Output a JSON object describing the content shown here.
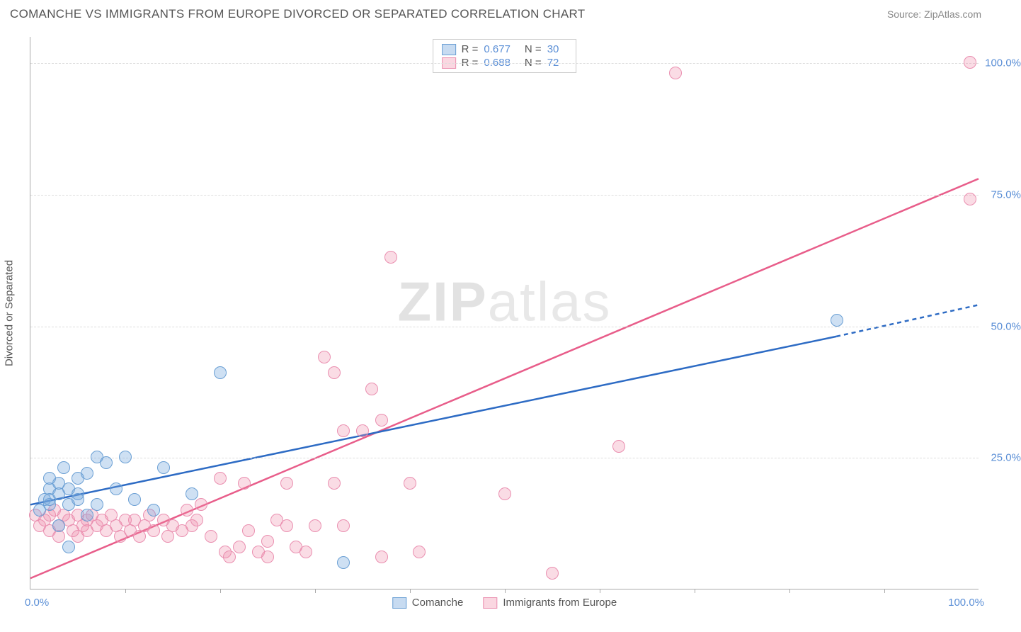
{
  "title": "COMANCHE VS IMMIGRANTS FROM EUROPE DIVORCED OR SEPARATED CORRELATION CHART",
  "source_label": "Source: ",
  "source_name": "ZipAtlas.com",
  "watermark_bold": "ZIP",
  "watermark_light": "atlas",
  "y_axis_title": "Divorced or Separated",
  "x_min_label": "0.0%",
  "x_max_label": "100.0%",
  "xlim": [
    0,
    100
  ],
  "ylim": [
    0,
    105
  ],
  "y_ticks": [
    {
      "v": 25,
      "label": "25.0%"
    },
    {
      "v": 50,
      "label": "50.0%"
    },
    {
      "v": 75,
      "label": "75.0%"
    },
    {
      "v": 100,
      "label": "100.0%"
    }
  ],
  "x_tick_positions": [
    10,
    20,
    30,
    40,
    50,
    60,
    70,
    80,
    90
  ],
  "top_legend": [
    {
      "swatch": "blue",
      "r_label": "R =",
      "r_val": "0.677",
      "n_label": "N =",
      "n_val": "30"
    },
    {
      "swatch": "pink",
      "r_label": "R =",
      "r_val": "0.688",
      "n_label": "N =",
      "n_val": "72"
    }
  ],
  "bottom_legend": [
    {
      "swatch": "blue",
      "label": "Comanche"
    },
    {
      "swatch": "pink",
      "label": "Immigrants from Europe"
    }
  ],
  "series": {
    "comanche": {
      "color_fill": "rgba(115,165,220,0.35)",
      "color_stroke": "#6a9fd4",
      "trend_color": "#2d6bc4",
      "trend_x1": 0,
      "trend_y1": 16,
      "trend_x2": 85,
      "trend_y2": 48,
      "trend_dash_x2": 100,
      "trend_dash_y2": 54,
      "points": [
        [
          1,
          15
        ],
        [
          1.5,
          17
        ],
        [
          2,
          19
        ],
        [
          2,
          16
        ],
        [
          3,
          20
        ],
        [
          3.5,
          23
        ],
        [
          4,
          19
        ],
        [
          4,
          16
        ],
        [
          5,
          18
        ],
        [
          5,
          21
        ],
        [
          6,
          22
        ],
        [
          7,
          25
        ],
        [
          8,
          24
        ],
        [
          9,
          19
        ],
        [
          10,
          25
        ],
        [
          11,
          17
        ],
        [
          17,
          18
        ],
        [
          20,
          41
        ],
        [
          4,
          8
        ],
        [
          3,
          12
        ],
        [
          6,
          14
        ],
        [
          2,
          17
        ],
        [
          13,
          15
        ],
        [
          14,
          23
        ],
        [
          3,
          18
        ],
        [
          2,
          21
        ],
        [
          33,
          5
        ],
        [
          5,
          17
        ],
        [
          7,
          16
        ],
        [
          85,
          51
        ]
      ]
    },
    "immigrants": {
      "color_fill": "rgba(240,140,170,0.30)",
      "color_stroke": "#ea8fb0",
      "trend_color": "#e85d8a",
      "trend_x1": 0,
      "trend_y1": 2,
      "trend_x2": 100,
      "trend_y2": 78,
      "points": [
        [
          0.5,
          14
        ],
        [
          1,
          12
        ],
        [
          1.5,
          13
        ],
        [
          2,
          14
        ],
        [
          2,
          11
        ],
        [
          2.5,
          15
        ],
        [
          3,
          12
        ],
        [
          3,
          10
        ],
        [
          3.5,
          14
        ],
        [
          4,
          13
        ],
        [
          4.5,
          11
        ],
        [
          5,
          14
        ],
        [
          5,
          10
        ],
        [
          5.5,
          12
        ],
        [
          6,
          13
        ],
        [
          6,
          11
        ],
        [
          6.5,
          14
        ],
        [
          7,
          12
        ],
        [
          7.5,
          13
        ],
        [
          8,
          11
        ],
        [
          8.5,
          14
        ],
        [
          9,
          12
        ],
        [
          9.5,
          10
        ],
        [
          10,
          13
        ],
        [
          10.5,
          11
        ],
        [
          11,
          13
        ],
        [
          11.5,
          10
        ],
        [
          12,
          12
        ],
        [
          12.5,
          14
        ],
        [
          13,
          11
        ],
        [
          14,
          13
        ],
        [
          14.5,
          10
        ],
        [
          15,
          12
        ],
        [
          16,
          11
        ],
        [
          16.5,
          15
        ],
        [
          17,
          12
        ],
        [
          17.5,
          13
        ],
        [
          18,
          16
        ],
        [
          19,
          10
        ],
        [
          20,
          21
        ],
        [
          20.5,
          7
        ],
        [
          21,
          6
        ],
        [
          22,
          8
        ],
        [
          22.5,
          20
        ],
        [
          23,
          11
        ],
        [
          24,
          7
        ],
        [
          25,
          9
        ],
        [
          25,
          6
        ],
        [
          26,
          13
        ],
        [
          27,
          12
        ],
        [
          27,
          20
        ],
        [
          28,
          8
        ],
        [
          29,
          7
        ],
        [
          30,
          12
        ],
        [
          31,
          44
        ],
        [
          32,
          41
        ],
        [
          33,
          30
        ],
        [
          32,
          20
        ],
        [
          33,
          12
        ],
        [
          35,
          30
        ],
        [
          36,
          38
        ],
        [
          37,
          32
        ],
        [
          37,
          6
        ],
        [
          38,
          63
        ],
        [
          40,
          20
        ],
        [
          41,
          7
        ],
        [
          50,
          18
        ],
        [
          55,
          3
        ],
        [
          62,
          27
        ],
        [
          68,
          98
        ],
        [
          99,
          100
        ],
        [
          99,
          74
        ]
      ]
    }
  }
}
